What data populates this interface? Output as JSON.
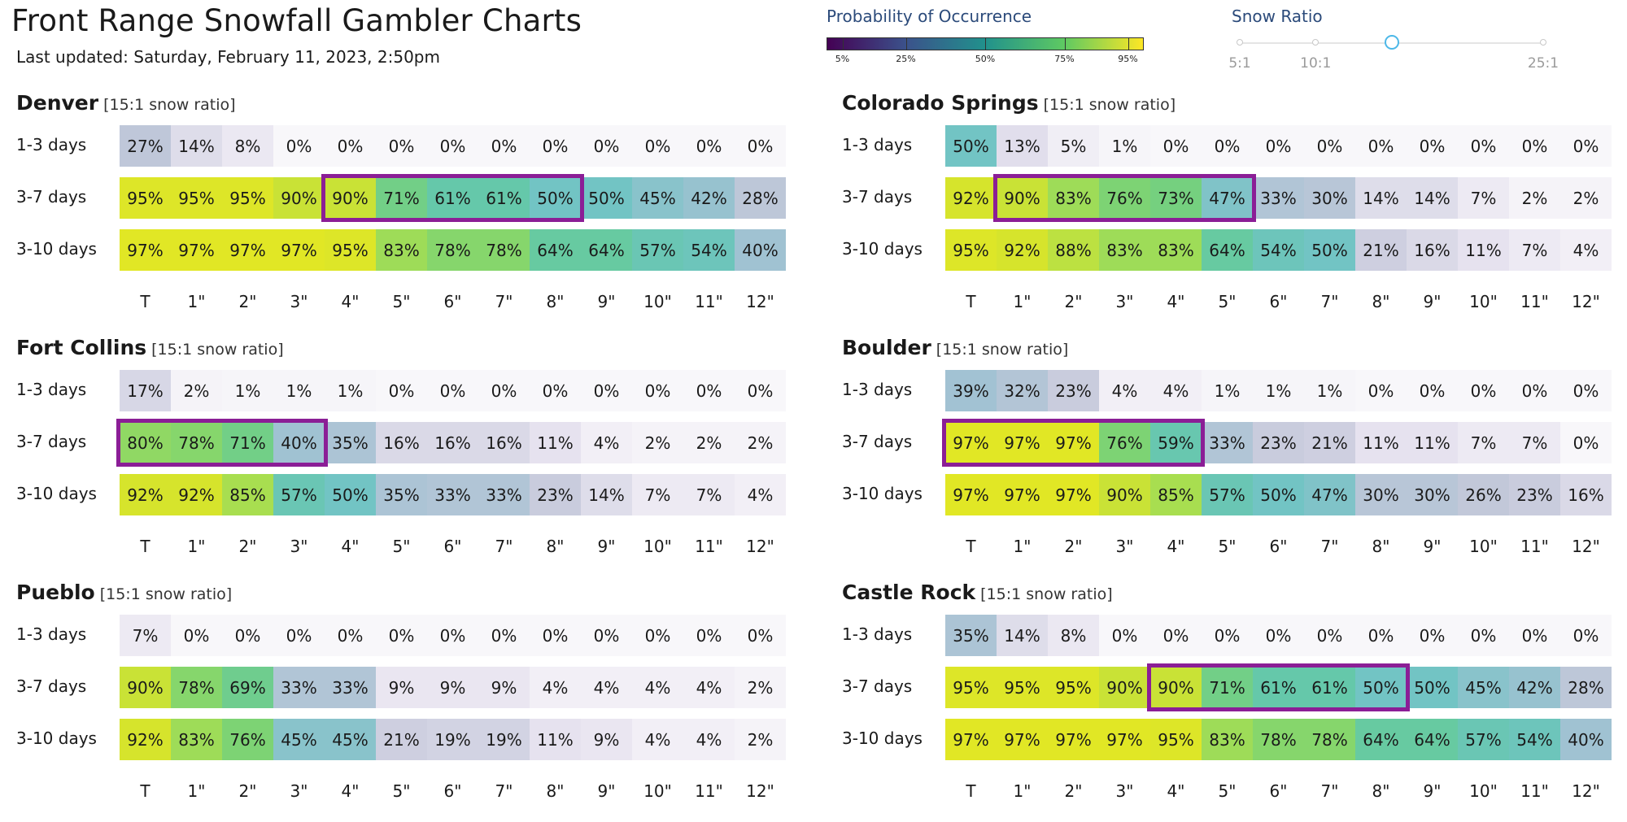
{
  "page": {
    "title": "Front Range Snowfall Gambler Charts",
    "updated": "Last updated: Saturday, February 11, 2023, 2:50pm"
  },
  "legend": {
    "title": "Probability of Occurrence",
    "ticks": [
      "5%",
      "25%",
      "50%",
      "75%",
      "95%"
    ],
    "tick_values": [
      5,
      25,
      50,
      75,
      95
    ]
  },
  "snow_ratio": {
    "title": "Snow Ratio",
    "labels": [
      "5:1",
      "10:1",
      "25:1"
    ],
    "stops": [
      5,
      10,
      15,
      25
    ],
    "selected": 15
  },
  "chart_data": [
    {
      "type": "heatmap",
      "title": "Denver",
      "subtitle": "[15:1 snow ratio]",
      "rows": [
        "1-3 days",
        "3-7 days",
        "3-10 days"
      ],
      "categories": [
        "T",
        "1\"",
        "2\"",
        "3\"",
        "4\"",
        "5\"",
        "6\"",
        "7\"",
        "8\"",
        "9\"",
        "10\"",
        "11\"",
        "12\""
      ],
      "values": [
        [
          27,
          14,
          8,
          0,
          0,
          0,
          0,
          0,
          0,
          0,
          0,
          0,
          0
        ],
        [
          95,
          95,
          95,
          90,
          90,
          71,
          61,
          61,
          50,
          50,
          45,
          42,
          28
        ],
        [
          97,
          97,
          97,
          97,
          95,
          83,
          78,
          78,
          64,
          64,
          57,
          54,
          40
        ]
      ],
      "highlight": {
        "row": 1,
        "from": 4,
        "to": 8
      }
    },
    {
      "type": "heatmap",
      "title": "Colorado Springs",
      "subtitle": "[15:1 snow ratio]",
      "rows": [
        "1-3 days",
        "3-7 days",
        "3-10 days"
      ],
      "categories": [
        "T",
        "1\"",
        "2\"",
        "3\"",
        "4\"",
        "5\"",
        "6\"",
        "7\"",
        "8\"",
        "9\"",
        "10\"",
        "11\"",
        "12\""
      ],
      "values": [
        [
          50,
          13,
          5,
          1,
          0,
          0,
          0,
          0,
          0,
          0,
          0,
          0,
          0
        ],
        [
          92,
          90,
          83,
          76,
          73,
          47,
          33,
          30,
          14,
          14,
          7,
          2,
          2
        ],
        [
          95,
          92,
          88,
          83,
          83,
          64,
          54,
          50,
          21,
          16,
          11,
          7,
          4
        ]
      ],
      "highlight": {
        "row": 1,
        "from": 1,
        "to": 5
      }
    },
    {
      "type": "heatmap",
      "title": "Fort Collins",
      "subtitle": "[15:1 snow ratio]",
      "rows": [
        "1-3 days",
        "3-7 days",
        "3-10 days"
      ],
      "categories": [
        "T",
        "1\"",
        "2\"",
        "3\"",
        "4\"",
        "5\"",
        "6\"",
        "7\"",
        "8\"",
        "9\"",
        "10\"",
        "11\"",
        "12\""
      ],
      "values": [
        [
          17,
          2,
          1,
          1,
          1,
          0,
          0,
          0,
          0,
          0,
          0,
          0,
          0
        ],
        [
          80,
          78,
          71,
          40,
          35,
          16,
          16,
          16,
          11,
          4,
          2,
          2,
          2
        ],
        [
          92,
          92,
          85,
          57,
          50,
          35,
          33,
          33,
          23,
          14,
          7,
          7,
          4
        ]
      ],
      "highlight": {
        "row": 1,
        "from": 0,
        "to": 3
      }
    },
    {
      "type": "heatmap",
      "title": "Boulder",
      "subtitle": "[15:1 snow ratio]",
      "rows": [
        "1-3 days",
        "3-7 days",
        "3-10 days"
      ],
      "categories": [
        "T",
        "1\"",
        "2\"",
        "3\"",
        "4\"",
        "5\"",
        "6\"",
        "7\"",
        "8\"",
        "9\"",
        "10\"",
        "11\"",
        "12\""
      ],
      "values": [
        [
          39,
          32,
          23,
          4,
          4,
          1,
          1,
          1,
          0,
          0,
          0,
          0,
          0
        ],
        [
          97,
          97,
          97,
          76,
          59,
          33,
          23,
          21,
          11,
          11,
          7,
          7,
          0
        ],
        [
          97,
          97,
          97,
          90,
          85,
          57,
          50,
          47,
          30,
          30,
          26,
          23,
          16
        ]
      ],
      "highlight": {
        "row": 1,
        "from": 0,
        "to": 4
      }
    },
    {
      "type": "heatmap",
      "title": "Pueblo",
      "subtitle": "[15:1 snow ratio]",
      "rows": [
        "1-3 days",
        "3-7 days",
        "3-10 days"
      ],
      "categories": [
        "T",
        "1\"",
        "2\"",
        "3\"",
        "4\"",
        "5\"",
        "6\"",
        "7\"",
        "8\"",
        "9\"",
        "10\"",
        "11\"",
        "12\""
      ],
      "values": [
        [
          7,
          0,
          0,
          0,
          0,
          0,
          0,
          0,
          0,
          0,
          0,
          0,
          0
        ],
        [
          90,
          78,
          69,
          33,
          33,
          9,
          9,
          9,
          4,
          4,
          4,
          4,
          2
        ],
        [
          92,
          83,
          76,
          45,
          45,
          21,
          19,
          19,
          11,
          9,
          4,
          4,
          2
        ]
      ],
      "highlight": null
    },
    {
      "type": "heatmap",
      "title": "Castle Rock",
      "subtitle": "[15:1 snow ratio]",
      "rows": [
        "1-3 days",
        "3-7 days",
        "3-10 days"
      ],
      "categories": [
        "T",
        "1\"",
        "2\"",
        "3\"",
        "4\"",
        "5\"",
        "6\"",
        "7\"",
        "8\"",
        "9\"",
        "10\"",
        "11\"",
        "12\""
      ],
      "values": [
        [
          35,
          14,
          8,
          0,
          0,
          0,
          0,
          0,
          0,
          0,
          0,
          0,
          0
        ],
        [
          95,
          95,
          95,
          90,
          90,
          71,
          61,
          61,
          50,
          50,
          45,
          42,
          28
        ],
        [
          97,
          97,
          97,
          97,
          95,
          83,
          78,
          78,
          64,
          64,
          57,
          54,
          40
        ]
      ],
      "highlight": {
        "row": 1,
        "from": 4,
        "to": 8
      }
    }
  ]
}
